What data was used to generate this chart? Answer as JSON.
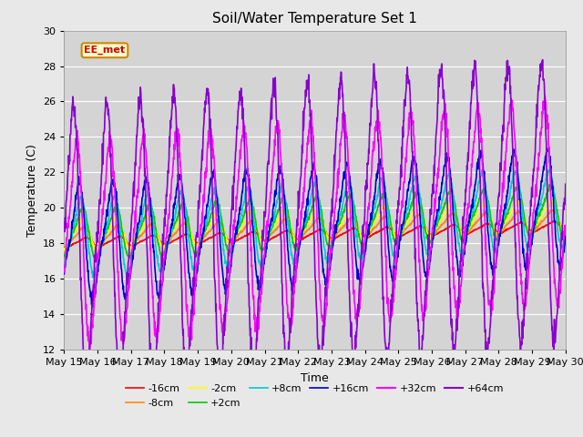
{
  "title": "Soil/Water Temperature Set 1",
  "xlabel": "Time",
  "ylabel": "Temperature (C)",
  "ylim": [
    12,
    30
  ],
  "xlim_days": [
    15,
    30
  ],
  "annotation_text": "EE_met",
  "background_color": "#e8e8e8",
  "plot_bg_color": "#d4d4d4",
  "grid_color": "#ffffff",
  "series": [
    {
      "label": "-16cm",
      "color": "#ff0000",
      "base": 18.0,
      "amp": 0.25,
      "phase": 0.0,
      "trend": 0.065
    },
    {
      "label": "-8cm",
      "color": "#ff8800",
      "base": 18.3,
      "amp": 0.55,
      "phase": 0.05,
      "trend": 0.065
    },
    {
      "label": "-2cm",
      "color": "#ffff00",
      "base": 18.5,
      "amp": 0.8,
      "phase": 0.08,
      "trend": 0.07
    },
    {
      "label": "+2cm",
      "color": "#00cc00",
      "base": 18.5,
      "amp": 1.3,
      "phase": 0.1,
      "trend": 0.09
    },
    {
      "label": "+8cm",
      "color": "#00cccc",
      "base": 18.3,
      "amp": 2.0,
      "phase": 0.15,
      "trend": 0.115
    },
    {
      "label": "+16cm",
      "color": "#0000cc",
      "base": 18.0,
      "amp": 3.0,
      "phase": 0.2,
      "trend": 0.135
    },
    {
      "label": "+32cm",
      "color": "#ff00ff",
      "base": 18.0,
      "amp": 5.2,
      "phase": 0.28,
      "trend": 0.155
    },
    {
      "label": "+64cm",
      "color": "#8800cc",
      "base": 17.8,
      "amp": 7.2,
      "phase": 0.38,
      "trend": 0.175
    }
  ],
  "tick_labels": [
    "May 15",
    "May 16",
    "May 17",
    "May 18",
    "May 19",
    "May 20",
    "May 21",
    "May 22",
    "May 23",
    "May 24",
    "May 25",
    "May 26",
    "May 27",
    "May 28",
    "May 29",
    "May 30"
  ],
  "tick_positions": [
    15,
    16,
    17,
    18,
    19,
    20,
    21,
    22,
    23,
    24,
    25,
    26,
    27,
    28,
    29,
    30
  ],
  "yticks": [
    12,
    14,
    16,
    18,
    20,
    22,
    24,
    26,
    28,
    30
  ],
  "n_points": 1440,
  "legend_colors": [
    "#ff0000",
    "#ff8800",
    "#ffff00",
    "#00cc00",
    "#00cccc",
    "#0000cc",
    "#ff00ff",
    "#8800cc"
  ],
  "legend_labels": [
    "-16cm",
    "-8cm",
    "-2cm",
    "+2cm",
    "+8cm",
    "+16cm",
    "+32cm",
    "+64cm"
  ]
}
